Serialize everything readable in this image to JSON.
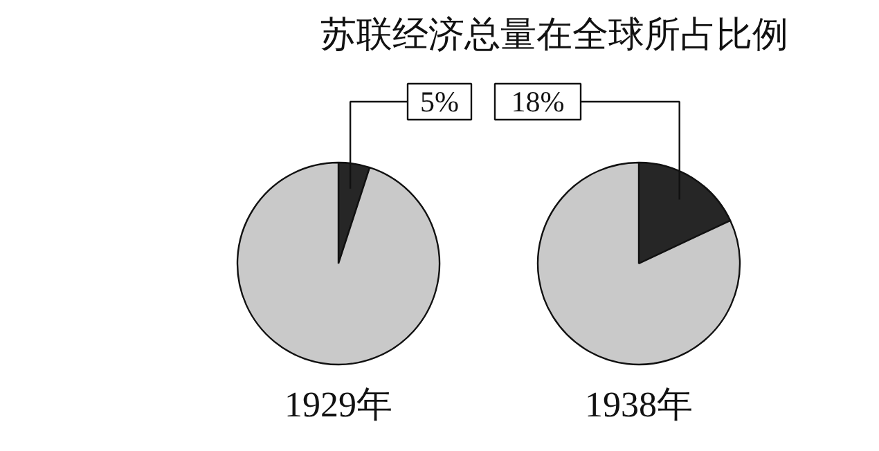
{
  "chart_data": [
    {
      "type": "pie",
      "title": "苏联经济总量在全球所占比例",
      "xlabel": "1929年",
      "categories": [
        null,
        null
      ],
      "values": [
        5,
        95
      ],
      "colors": [
        "#262626",
        "#c9c9c9"
      ],
      "value_labels": [
        "5%",
        null
      ]
    },
    {
      "type": "pie",
      "xlabel": "1938年",
      "categories": [
        null,
        null
      ],
      "values": [
        18,
        82
      ],
      "colors": [
        "#262626",
        "#c9c9c9"
      ],
      "value_labels": [
        "18%",
        null
      ]
    }
  ]
}
